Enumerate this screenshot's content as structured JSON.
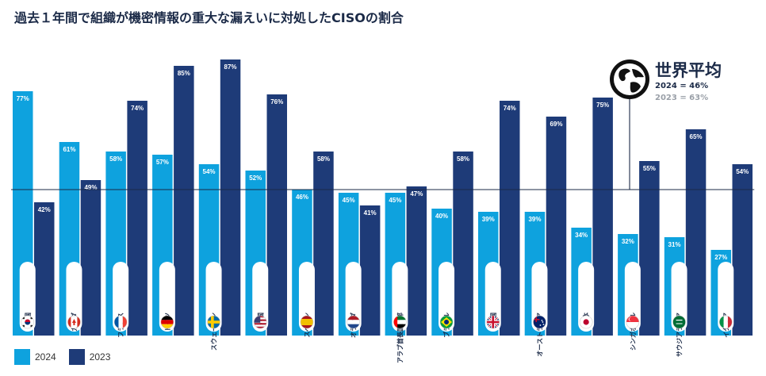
{
  "title": "過去１年間で組織が機密情報の重大な漏えいに対処したCISOの割合",
  "colors": {
    "s2024": "#0ea2de",
    "s2023": "#1e3b78",
    "baseline": "#1b2a47"
  },
  "world_average": {
    "title": "世界平均",
    "line_2024": "2024 = 46%",
    "line_2023": "2023 = 63%"
  },
  "legend": [
    {
      "label": "2024",
      "color": "#0ea2de"
    },
    {
      "label": "2023",
      "color": "#1e3b78"
    }
  ],
  "chart_data": {
    "type": "bar",
    "title": "過去１年間で組織が機密情報の重大な漏えいに対処したCISOの割合",
    "categories": [
      "韓国",
      "カナダ",
      "フランス",
      "ドイツ",
      "スウェーデン",
      "米国",
      "スペイン",
      "オランダ",
      "アラブ首長国連邦",
      "ブラジル",
      "英国",
      "オーストラリア",
      "日本",
      "シンガポール",
      "サウジアラビア",
      "イタリア"
    ],
    "flags": [
      "south-korea",
      "canada",
      "france",
      "germany",
      "sweden",
      "usa",
      "spain",
      "netherlands",
      "uae",
      "brazil",
      "uk",
      "australia",
      "japan",
      "singapore",
      "saudi-arabia",
      "italy"
    ],
    "series": [
      {
        "name": "2024",
        "values": [
          77,
          61,
          58,
          57,
          54,
          52,
          46,
          45,
          45,
          40,
          39,
          39,
          34,
          32,
          31,
          27
        ],
        "labels": [
          "77%",
          "61%",
          "58%",
          "57%",
          "54%",
          "52%",
          "46%",
          "45%",
          "45%",
          "40%",
          "39%",
          "39%",
          "34%",
          "32%",
          "31%",
          "27%"
        ]
      },
      {
        "name": "2023",
        "values": [
          42,
          49,
          74,
          85,
          87,
          76,
          58,
          41,
          47,
          58,
          74,
          69,
          75,
          55,
          65,
          54
        ],
        "labels": [
          "42%",
          "49%",
          "74%",
          "85%",
          "87%",
          "76%",
          "58%",
          "41%",
          "47%",
          "58%",
          "74%",
          "69%",
          "75%",
          "55%",
          "65%",
          "54%"
        ]
      }
    ],
    "reference_lines": [
      {
        "series": "2024",
        "value": 46
      }
    ],
    "ylim": [
      0,
      90
    ],
    "legend_position": "bottom-left"
  }
}
